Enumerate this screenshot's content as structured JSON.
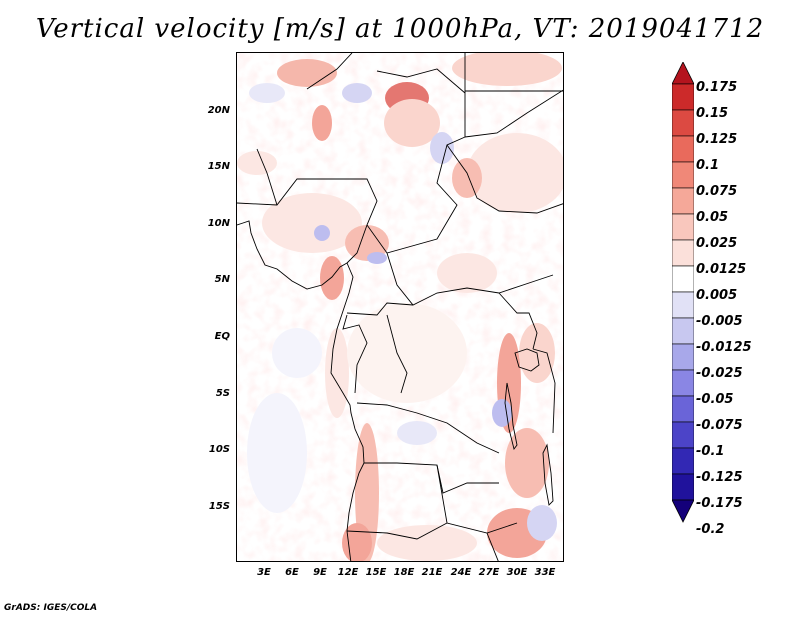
{
  "title": "Vertical velocity [m/s] at 1000hPa, VT: 2019041712",
  "footer": "GrADS: IGES/COLA",
  "map": {
    "variable": "Vertical velocity",
    "units": "m/s",
    "level": "1000hPa",
    "valid_time": "2019041712",
    "lat_labels": [
      "20N",
      "15N",
      "10N",
      "5N",
      "EQ",
      "5S",
      "10S",
      "15S"
    ],
    "lon_labels": [
      "3E",
      "6E",
      "9E",
      "12E",
      "15E",
      "18E",
      "21E",
      "24E",
      "27E",
      "30E",
      "33E"
    ]
  },
  "colorbar": {
    "levels": [
      "0.175",
      "0.15",
      "0.125",
      "0.1",
      "0.075",
      "0.05",
      "0.025",
      "0.0125",
      "0.005",
      "-0.005",
      "-0.0125",
      "-0.025",
      "-0.05",
      "-0.075",
      "-0.1",
      "-0.125",
      "-0.175",
      "-0.2"
    ],
    "colors": [
      "#b4141e",
      "#cc2a2a",
      "#dc4a42",
      "#e96a5c",
      "#f08878",
      "#f5a899",
      "#f9c7bd",
      "#fbe0da",
      "#ffffff",
      "#e1e1f6",
      "#c8c8f0",
      "#a8a8ea",
      "#8a86e4",
      "#6a64d8",
      "#4c44c8",
      "#3228b4",
      "#20129c",
      "#14007a"
    ]
  }
}
